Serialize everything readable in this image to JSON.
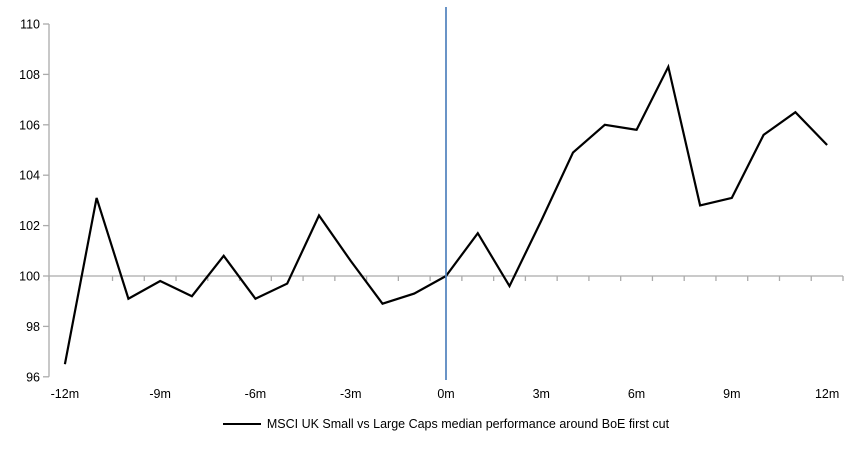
{
  "chart_data": {
    "type": "line",
    "title": "",
    "x": [
      -12,
      -11,
      -10,
      -9,
      -8,
      -7,
      -6,
      -5,
      -4,
      -3,
      -2,
      -1,
      0,
      1,
      2,
      3,
      4,
      5,
      6,
      7,
      8,
      9,
      10,
      11,
      12
    ],
    "series": [
      {
        "name": "MSCI UK Small vs Large Caps median performance around BoE first cut",
        "color": "#000000",
        "values": [
          96.5,
          103.1,
          99.1,
          99.8,
          99.2,
          100.8,
          99.1,
          99.7,
          102.4,
          100.6,
          98.9,
          99.3,
          100,
          101.7,
          99.6,
          102.2,
          104.9,
          106,
          105.8,
          108.3,
          102.8,
          103.1,
          105.6,
          106.5,
          105.2
        ]
      }
    ],
    "xlim": [
      -12.5,
      12.5
    ],
    "ylim": [
      96,
      110
    ],
    "y_ticks": [
      96,
      98,
      100,
      102,
      104,
      106,
      108,
      110
    ],
    "x_ticks": {
      "labels": [
        "-12m",
        "-9m",
        "-6m",
        "-3m",
        "0m",
        "3m",
        "6m",
        "9m",
        "12m"
      ],
      "positions": [
        -12,
        -9,
        -6,
        -3,
        0,
        3,
        6,
        9,
        12
      ]
    },
    "baseline_value": 100,
    "event_line": {
      "x": 0,
      "color": "#4F81BD"
    },
    "axis_color": "#ABABAB",
    "grid": "off",
    "legend_position": "bottom-center"
  }
}
